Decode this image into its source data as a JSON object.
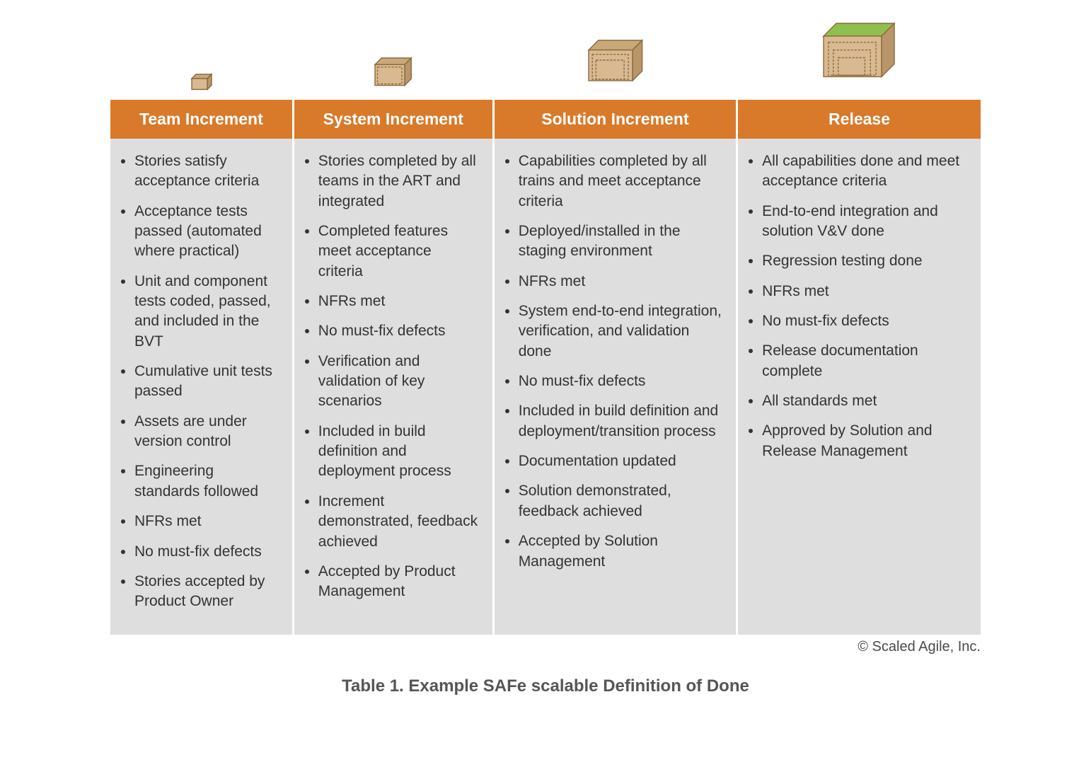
{
  "table": {
    "type": "table",
    "header_bg": "#d87a2a",
    "header_text_color": "#ffffff",
    "body_bg": "#dedede",
    "divider_color": "#ffffff",
    "body_text_color": "#333333",
    "header_fontsize": 23,
    "body_fontsize": 21,
    "column_widths_pct": [
      21,
      23,
      28,
      28
    ],
    "columns": [
      {
        "header": "Team Increment",
        "icon_level": 1,
        "items": [
          "Stories satisfy acceptance criteria",
          "Acceptance tests passed (automated where practical)",
          "Unit and component tests coded, passed, and included in the BVT",
          "Cumulative unit tests passed",
          "Assets are under version control",
          "Engineering standards followed",
          "NFRs met",
          "No must-fix defects",
          "Stories accepted by Product Owner"
        ]
      },
      {
        "header": "System Increment",
        "icon_level": 2,
        "items": [
          "Stories completed by all teams in the ART and integrated",
          "Completed features meet acceptance criteria",
          "NFRs met",
          "No must-fix defects",
          "Verification and validation of key scenarios",
          "Included in build definition and deployment process",
          "Increment demonstrated, feedback achieved",
          "Accepted by Product Management"
        ]
      },
      {
        "header": "Solution Increment",
        "icon_level": 3,
        "items": [
          "Capabilities completed by all trains and meet acceptance criteria",
          "Deployed/installed in the staging environment",
          "NFRs met",
          "System end-to-end integration, verification, and validation done",
          "No must-fix defects",
          "Included in build definition and deployment/transition process",
          "Documentation updated",
          "Solution demonstrated, feedback achieved",
          "Accepted by Solution Management"
        ]
      },
      {
        "header": "Release",
        "icon_level": 4,
        "items": [
          "All capabilities done and meet acceptance criteria",
          "End-to-end integration and solution V&V done",
          "Regression testing done",
          "NFRs met",
          "No must-fix defects",
          "Release documentation complete",
          "All standards met",
          "Approved by Solution and Release Management"
        ]
      }
    ]
  },
  "icons": {
    "box_fill": "#d9b991",
    "box_top_fill": "#c9a87a",
    "box_side_fill": "#b8966a",
    "box_stroke": "#8a6a3a",
    "inner_stroke": "#8a6a3a",
    "release_top_fill": "#8fbf4f",
    "sizes": {
      "1": 22,
      "2": 42,
      "3": 62,
      "4": 82
    }
  },
  "copyright": "© Scaled Agile, Inc.",
  "caption": "Table 1. Example SAFe scalable Definition of Done",
  "caption_fontsize": 24,
  "caption_color": "#555555",
  "copyright_color": "#4a4a4a"
}
